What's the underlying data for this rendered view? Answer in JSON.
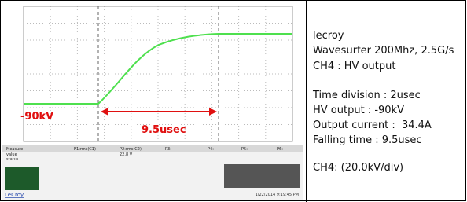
{
  "scope": {
    "annotations": {
      "voltage": "-90kV",
      "duration": "9.5usec"
    },
    "measure": {
      "headers": [
        "Measure",
        "P1:rms(C1)",
        "P2:rms(C2)",
        "P3:---",
        "P4:---",
        "P5:---",
        "P6:---"
      ],
      "rows": [
        "value",
        "status"
      ],
      "reading": "22.8 V"
    },
    "brand": "LeCroy",
    "timestamp": "1/22/2014 9:19:45 PM"
  },
  "notes": [
    "lecroy",
    "Wavesurfer 200Mhz, 2.5G/s",
    "CH4 : HV output",
    "Time division : 2usec",
    "HV output : -90kV",
    "Output current :  34.4A",
    "Falling time : 9.5usec",
    "CH4: (20.0kV/div)"
  ]
}
